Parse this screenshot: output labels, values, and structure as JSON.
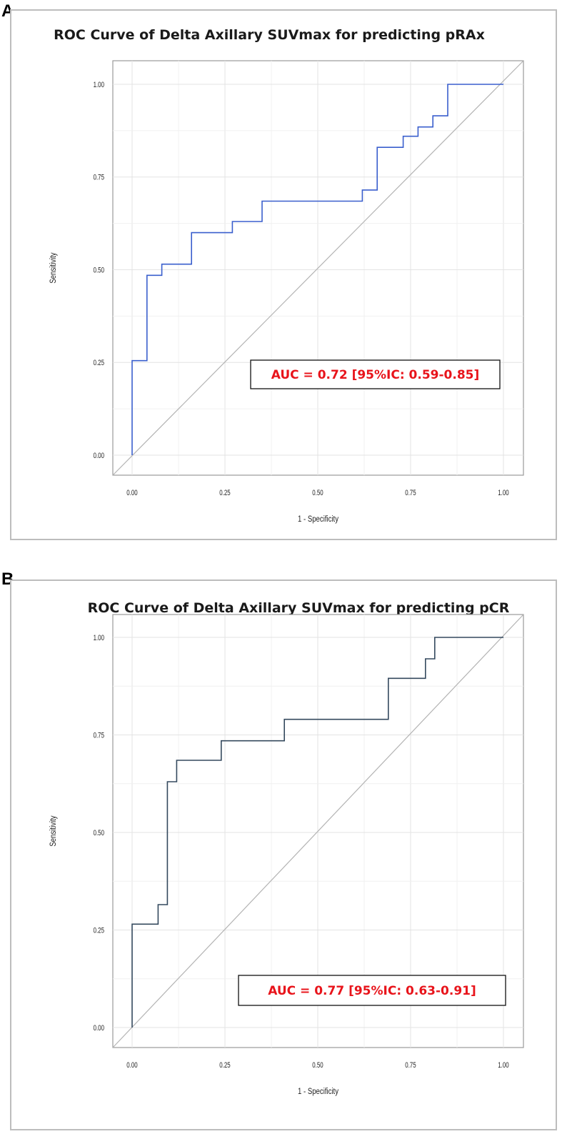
{
  "panels": [
    {
      "letter": "A"
    },
    {
      "letter": "B"
    }
  ],
  "chart_data": [
    {
      "type": "line",
      "title": "ROC Curve of Delta Axillary SUVmax for predicting pRAx",
      "xlabel": "1 - Specificity",
      "ylabel": "Sensitivity",
      "xlim": [
        0,
        1
      ],
      "ylim": [
        0,
        1
      ],
      "xticks": [
        "0.00",
        "0.25",
        "0.50",
        "0.75",
        "1.00"
      ],
      "yticks": [
        "0.00",
        "0.25",
        "0.50",
        "0.75",
        "1.00"
      ],
      "grid": true,
      "annotation": "AUC = 0.72 [95%IC: 0.59-0.85]",
      "series": [
        {
          "color": "#3a5fcd",
          "step": true,
          "x": [
            0,
            0,
            0.04,
            0.04,
            0.08,
            0.08,
            0.16,
            0.16,
            0.27,
            0.27,
            0.35,
            0.35,
            0.62,
            0.62,
            0.66,
            0.66,
            0.73,
            0.73,
            0.77,
            0.77,
            0.81,
            0.81,
            0.85,
            0.85,
            1.0
          ],
          "y": [
            0,
            0.255,
            0.255,
            0.485,
            0.485,
            0.515,
            0.515,
            0.6,
            0.6,
            0.63,
            0.63,
            0.685,
            0.685,
            0.715,
            0.715,
            0.83,
            0.83,
            0.86,
            0.86,
            0.885,
            0.885,
            0.915,
            0.915,
            1.0,
            1.0
          ]
        }
      ],
      "reference_line": {
        "color": "#b3b3b3",
        "x": [
          0,
          1
        ],
        "y": [
          0,
          1
        ]
      }
    },
    {
      "type": "line",
      "title": "ROC Curve of Delta Axillary SUVmax for predicting pCR",
      "xlabel": "1 - Specificity",
      "ylabel": "Sensitivity",
      "xlim": [
        0,
        1
      ],
      "ylim": [
        0,
        1
      ],
      "xticks": [
        "0.00",
        "0.25",
        "0.50",
        "0.75",
        "1.00"
      ],
      "yticks": [
        "0.00",
        "0.25",
        "0.50",
        "0.75",
        "1.00"
      ],
      "grid": true,
      "annotation": "AUC = 0.77 [95%IC: 0.63-0.91]",
      "series": [
        {
          "color": "#34495e",
          "step": true,
          "x": [
            0,
            0,
            0.07,
            0.07,
            0.095,
            0.095,
            0.12,
            0.12,
            0.24,
            0.24,
            0.41,
            0.41,
            0.69,
            0.69,
            0.79,
            0.79,
            0.815,
            0.815,
            1.0
          ],
          "y": [
            0,
            0.265,
            0.265,
            0.315,
            0.315,
            0.63,
            0.63,
            0.685,
            0.685,
            0.735,
            0.735,
            0.79,
            0.79,
            0.895,
            0.895,
            0.945,
            0.945,
            1.0,
            1.0
          ]
        }
      ],
      "reference_line": {
        "color": "#b3b3b3",
        "x": [
          0,
          1
        ],
        "y": [
          0,
          1
        ]
      }
    }
  ]
}
